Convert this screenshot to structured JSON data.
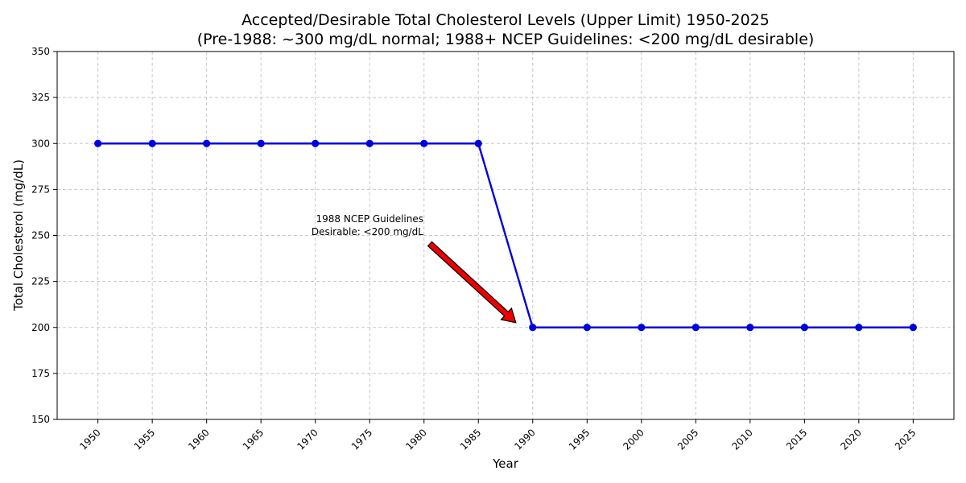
{
  "chart_data": {
    "type": "line",
    "title_line1": "Accepted/Desirable Total Cholesterol Levels (Upper Limit) 1950-2025",
    "title_line2": "(Pre-1988: ~300 mg/dL normal; 1988+ NCEP Guidelines: <200 mg/dL desirable)",
    "xlabel": "Year",
    "ylabel": "Total Cholesterol (mg/dL)",
    "x": [
      1950,
      1955,
      1960,
      1965,
      1970,
      1975,
      1980,
      1985,
      1990,
      1995,
      2000,
      2005,
      2010,
      2015,
      2020,
      2025
    ],
    "y": [
      300,
      300,
      300,
      300,
      300,
      300,
      300,
      300,
      200,
      200,
      200,
      200,
      200,
      200,
      200,
      200
    ],
    "xticks": [
      "1950",
      "1955",
      "1960",
      "1965",
      "1970",
      "1975",
      "1980",
      "1985",
      "1990",
      "1995",
      "2000",
      "2005",
      "2010",
      "2015",
      "2020",
      "2025"
    ],
    "yticks": [
      150,
      175,
      200,
      225,
      250,
      275,
      300,
      325,
      350
    ],
    "ylim": [
      150,
      350
    ],
    "xlim": [
      1946.25,
      2028.75
    ],
    "grid": true,
    "line_color": "#0000dd",
    "annotation": {
      "line1": "1988 NCEP Guidelines",
      "line2": "Desirable: <200 mg/dL",
      "point_x": 1988,
      "point_y": 200,
      "arrow_color": "#ee0000"
    }
  }
}
